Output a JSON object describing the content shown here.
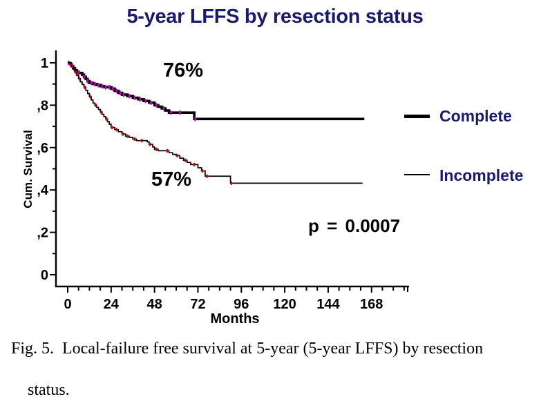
{
  "title": "5-year LFFS by resection status",
  "annotations": {
    "complete_pct": "76%",
    "incomplete_pct": "57%",
    "p_value": "p = 0.0007"
  },
  "legend": [
    {
      "label": "Complete",
      "swatch": "thick-black-line"
    },
    {
      "label": "Incomplete",
      "swatch": "thin-black-line"
    }
  ],
  "axes": {
    "y_label": "Cum. Survival",
    "x_label": "Months",
    "x_tick_labels": [
      "0",
      "24",
      "48",
      "72",
      "96",
      "120",
      "144",
      "168"
    ],
    "y_tick_labels": [
      "0",
      ",2",
      ",4",
      ",6",
      ",8",
      "1"
    ]
  },
  "caption": {
    "line1": "Fig. 5.  Local-failure free survival at 5-year (5-year LFFS) by resection",
    "line2": "status."
  },
  "colors": {
    "title_text": "#1b1b6e",
    "legend_text": "#1b1b6e",
    "curve": "#000000",
    "censor_complete": "#cc00cc",
    "censor_incomplete": "#dd0000",
    "axis": "#000000",
    "background": "#ffffff"
  },
  "chart_data": {
    "type": "line",
    "subtype": "kaplan-meier-step",
    "title": "5-year LFFS by resection status",
    "xlabel": "Months",
    "ylabel": "Cum. Survival",
    "xlim": [
      0,
      186
    ],
    "ylim": [
      0,
      1.05
    ],
    "x_ticks": [
      0,
      24,
      48,
      72,
      96,
      120,
      144,
      168
    ],
    "y_ticks": [
      0,
      0.2,
      0.4,
      0.6,
      0.8,
      1
    ],
    "minor_x_tick_step": 6,
    "minor_y_tick_step": 0.1,
    "grid": false,
    "legend_position": "right",
    "p_value": "p = 0.0007",
    "series": [
      {
        "name": "Complete",
        "five_year_value": "76%",
        "line": "thick",
        "end_x": 164,
        "points": [
          [
            0,
            1
          ],
          [
            1,
            0.995
          ],
          [
            2,
            0.985
          ],
          [
            3,
            0.975
          ],
          [
            4,
            0.965
          ],
          [
            5,
            0.958
          ],
          [
            6,
            0.952
          ],
          [
            8,
            0.944
          ],
          [
            9,
            0.934
          ],
          [
            10,
            0.924
          ],
          [
            11,
            0.914
          ],
          [
            12,
            0.905
          ],
          [
            14,
            0.9
          ],
          [
            16,
            0.895
          ],
          [
            18,
            0.89
          ],
          [
            20,
            0.885
          ],
          [
            24,
            0.878
          ],
          [
            26,
            0.868
          ],
          [
            28,
            0.858
          ],
          [
            30,
            0.85
          ],
          [
            33,
            0.843
          ],
          [
            36,
            0.835
          ],
          [
            39,
            0.828
          ],
          [
            42,
            0.82
          ],
          [
            45,
            0.812
          ],
          [
            48,
            0.8
          ],
          [
            50,
            0.793
          ],
          [
            52,
            0.785
          ],
          [
            54,
            0.775
          ],
          [
            56,
            0.765
          ],
          [
            70,
            0.735
          ]
        ],
        "censor_x": [
          0.5,
          1.5,
          2.5,
          4,
          6,
          9,
          11,
          13,
          15,
          17,
          19,
          21,
          23,
          25,
          27,
          29,
          31,
          34,
          37,
          40,
          43,
          46,
          49,
          53,
          57,
          62,
          70.5
        ]
      },
      {
        "name": "Incomplete",
        "five_year_value": "57%",
        "line": "thin",
        "end_x": 163,
        "points": [
          [
            0,
            1
          ],
          [
            2,
            0.985
          ],
          [
            3,
            0.97
          ],
          [
            4,
            0.955
          ],
          [
            5,
            0.94
          ],
          [
            6,
            0.925
          ],
          [
            7,
            0.91
          ],
          [
            8,
            0.898
          ],
          [
            9,
            0.884
          ],
          [
            10,
            0.87
          ],
          [
            11,
            0.855
          ],
          [
            12,
            0.84
          ],
          [
            13,
            0.825
          ],
          [
            14,
            0.81
          ],
          [
            15,
            0.8
          ],
          [
            16,
            0.79
          ],
          [
            17,
            0.78
          ],
          [
            18,
            0.768
          ],
          [
            19,
            0.757
          ],
          [
            20,
            0.746
          ],
          [
            21,
            0.735
          ],
          [
            22,
            0.722
          ],
          [
            23,
            0.71
          ],
          [
            24,
            0.695
          ],
          [
            26,
            0.685
          ],
          [
            28,
            0.675
          ],
          [
            30,
            0.664
          ],
          [
            32,
            0.654
          ],
          [
            34,
            0.648
          ],
          [
            36,
            0.64
          ],
          [
            38,
            0.633
          ],
          [
            44,
            0.627
          ],
          [
            45,
            0.615
          ],
          [
            47,
            0.603
          ],
          [
            48,
            0.592
          ],
          [
            50,
            0.585
          ],
          [
            56,
            0.576
          ],
          [
            58,
            0.568
          ],
          [
            60,
            0.562
          ],
          [
            62,
            0.55
          ],
          [
            64,
            0.54
          ],
          [
            66,
            0.53
          ],
          [
            68,
            0.52
          ],
          [
            72,
            0.505
          ],
          [
            74,
            0.49
          ],
          [
            76,
            0.465
          ],
          [
            90,
            0.432
          ]
        ],
        "censor_x": [
          2.5,
          4.5,
          6.5,
          9.5,
          12.5,
          15.5,
          18.5,
          21.5,
          24.5,
          27,
          30.5,
          33,
          37,
          41,
          45.5,
          49,
          55,
          60.5,
          65,
          70,
          74.5,
          77,
          90.5
        ]
      }
    ]
  }
}
